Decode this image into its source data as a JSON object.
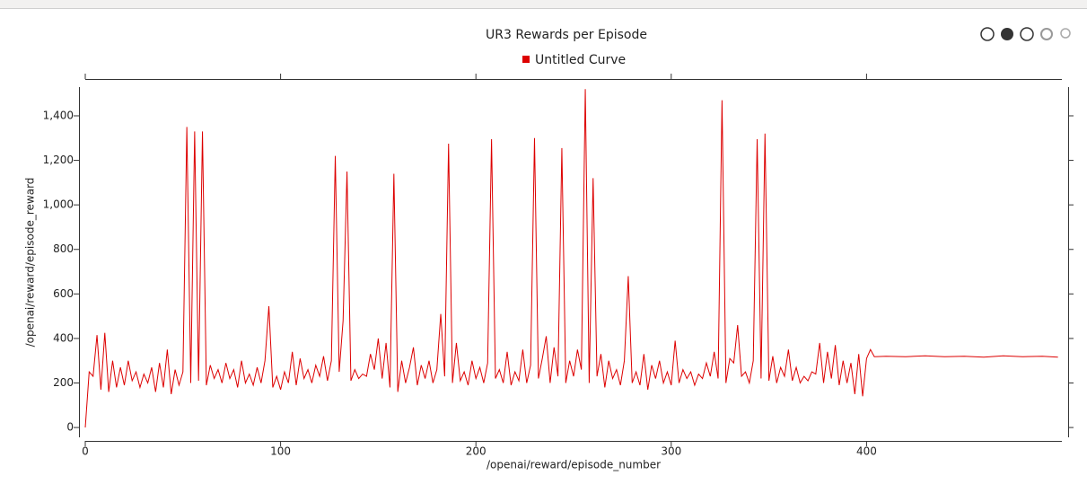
{
  "chart_data": {
    "type": "line",
    "title": "UR3 Rewards per Episode",
    "x_label": "/openai/reward/episode_number",
    "y_label": "/openai/reward/episode_reward",
    "xlim": [
      0,
      500
    ],
    "ylim": [
      -44,
      1529
    ],
    "xticks": [
      0,
      100,
      200,
      300,
      400
    ],
    "yticks": [
      0,
      200,
      400,
      600,
      800,
      {
        "value": 1000,
        "label": "1,000"
      },
      {
        "value": 1200,
        "label": "1,200"
      },
      {
        "value": 1400,
        "label": "1,400"
      }
    ],
    "x": [
      0,
      2,
      4,
      6,
      8,
      10,
      12,
      14,
      16,
      18,
      20,
      22,
      24,
      26,
      28,
      30,
      32,
      34,
      36,
      38,
      40,
      42,
      44,
      46,
      48,
      50,
      52,
      54,
      56,
      58,
      60,
      62,
      64,
      66,
      68,
      70,
      72,
      74,
      76,
      78,
      80,
      82,
      84,
      86,
      88,
      90,
      92,
      94,
      96,
      98,
      100,
      102,
      104,
      106,
      108,
      110,
      112,
      114,
      116,
      118,
      120,
      122,
      124,
      126,
      128,
      130,
      132,
      134,
      136,
      138,
      140,
      142,
      144,
      146,
      148,
      150,
      152,
      154,
      156,
      158,
      160,
      162,
      164,
      166,
      168,
      170,
      172,
      174,
      176,
      178,
      180,
      182,
      184,
      186,
      188,
      190,
      192,
      194,
      196,
      198,
      200,
      202,
      204,
      206,
      208,
      210,
      212,
      214,
      216,
      218,
      220,
      222,
      224,
      226,
      228,
      230,
      232,
      234,
      236,
      238,
      240,
      242,
      244,
      246,
      248,
      250,
      252,
      254,
      256,
      258,
      260,
      262,
      264,
      266,
      268,
      270,
      272,
      274,
      276,
      278,
      280,
      282,
      284,
      286,
      288,
      290,
      292,
      294,
      296,
      298,
      300,
      302,
      304,
      306,
      308,
      310,
      312,
      314,
      316,
      318,
      320,
      322,
      324,
      326,
      328,
      330,
      332,
      334,
      336,
      338,
      340,
      342,
      344,
      346,
      348,
      350,
      352,
      354,
      356,
      358,
      360,
      362,
      364,
      366,
      368,
      370,
      372,
      374,
      376,
      378,
      380,
      382,
      384,
      386,
      388,
      390,
      392,
      394,
      396,
      398,
      400,
      402,
      404,
      410,
      420,
      430,
      440,
      450,
      460,
      470,
      480,
      490,
      498
    ],
    "series": [
      {
        "name": "Untitled Curve",
        "color": "#dd0000",
        "values": [
          0,
          250,
          230,
          415,
          170,
          425,
          160,
          300,
          180,
          270,
          190,
          300,
          210,
          250,
          180,
          240,
          200,
          270,
          160,
          290,
          180,
          350,
          150,
          260,
          190,
          250,
          1350,
          200,
          1330,
          210,
          1330,
          190,
          280,
          220,
          260,
          200,
          290,
          220,
          260,
          180,
          300,
          200,
          240,
          190,
          270,
          200,
          300,
          545,
          180,
          230,
          170,
          250,
          200,
          340,
          190,
          310,
          220,
          260,
          200,
          280,
          230,
          320,
          210,
          300,
          1220,
          250,
          480,
          1150,
          210,
          260,
          220,
          240,
          230,
          330,
          260,
          400,
          220,
          380,
          180,
          1140,
          160,
          300,
          200,
          270,
          360,
          190,
          280,
          220,
          300,
          200,
          260,
          510,
          230,
          1275,
          200,
          380,
          210,
          250,
          190,
          300,
          220,
          270,
          200,
          290,
          1295,
          220,
          260,
          200,
          340,
          190,
          250,
          210,
          350,
          200,
          280,
          1300,
          220,
          310,
          410,
          200,
          360,
          230,
          1255,
          200,
          300,
          230,
          350,
          260,
          1520,
          200,
          1120,
          230,
          330,
          180,
          300,
          220,
          260,
          190,
          300,
          680,
          200,
          250,
          190,
          330,
          170,
          280,
          220,
          300,
          200,
          250,
          190,
          390,
          200,
          260,
          220,
          250,
          190,
          240,
          220,
          290,
          230,
          340,
          220,
          1470,
          200,
          310,
          290,
          460,
          230,
          250,
          200,
          300,
          1295,
          220,
          1320,
          210,
          320,
          200,
          270,
          230,
          350,
          210,
          270,
          200,
          230,
          210,
          250,
          240,
          380,
          200,
          340,
          220,
          370,
          190,
          300,
          200,
          290,
          150,
          330,
          140,
          310,
          350,
          318,
          320,
          318,
          322,
          318,
          320,
          316,
          322,
          318,
          320,
          316
        ]
      }
    ]
  }
}
